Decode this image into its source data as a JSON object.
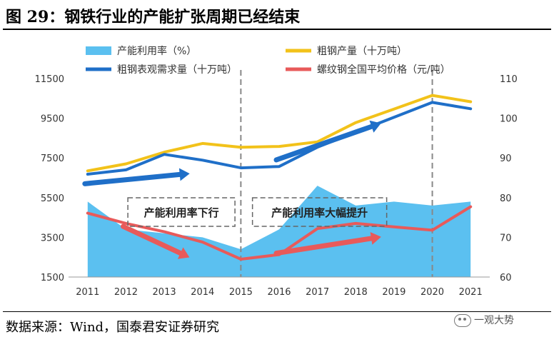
{
  "title": "图 29：钢铁行业的产能扩张周期已经结束",
  "source": "数据来源：Wind，国泰君安证券研究",
  "watermark": "一观大势",
  "chart_data": {
    "type": "line",
    "x": [
      "2011",
      "2012",
      "2013",
      "2014",
      "2015",
      "2016",
      "2017",
      "2018",
      "2019",
      "2020",
      "2021"
    ],
    "left_axis": {
      "ylim": [
        1500,
        11500
      ],
      "ticks": [
        1500,
        3500,
        5500,
        7500,
        9500,
        11500
      ]
    },
    "right_axis": {
      "ylim": [
        60,
        110
      ],
      "ticks": [
        60,
        70,
        80,
        90,
        100,
        110
      ]
    },
    "series": [
      {
        "name": "产能利用率（%）",
        "kind": "area",
        "axis": "right",
        "color": "#5bc0f0",
        "values": [
          79,
          72,
          71,
          70,
          67,
          72,
          83,
          78,
          79,
          78,
          79
        ]
      },
      {
        "name": "粗钢产量（十万吨）",
        "kind": "line",
        "axis": "left",
        "color": "#f2c21a",
        "values": [
          6850,
          7200,
          7790,
          8230,
          8040,
          8080,
          8310,
          9280,
          9960,
          10650,
          10330
        ]
      },
      {
        "name": "粗钢表观需求量（十万吨）",
        "kind": "line",
        "axis": "left",
        "color": "#1f6fc8",
        "values": [
          6680,
          6900,
          7680,
          7390,
          7000,
          7070,
          8040,
          8800,
          9550,
          10300,
          9980
        ]
      },
      {
        "name": "螺纹钢全国平均价格（元/吨）",
        "kind": "line",
        "axis": "left",
        "color": "#e85a5a",
        "values": [
          4720,
          4200,
          3780,
          3260,
          2400,
          2630,
          3940,
          4200,
          4030,
          3860,
          5040
        ]
      }
    ],
    "vlines": [
      "2015",
      "2020"
    ],
    "annotations": [
      {
        "text": "产能利用率下行",
        "boxed": true
      },
      {
        "text": "产能利用率大幅提升",
        "boxed": true
      }
    ],
    "trend_arrows": [
      {
        "color": "#1f6fc8",
        "from": [
          "2011",
          6200
        ],
        "to": [
          "2014",
          6700
        ]
      },
      {
        "color": "#1f6fc8",
        "from": [
          "2016",
          7400
        ],
        "to": [
          "2019",
          9200
        ]
      },
      {
        "color": "#e85a5a",
        "from": [
          "2012",
          4050
        ],
        "to": [
          "2014",
          2550
        ]
      },
      {
        "color": "#e85a5a",
        "from": [
          "2016",
          2700
        ],
        "to": [
          "2019",
          3500
        ]
      }
    ]
  }
}
